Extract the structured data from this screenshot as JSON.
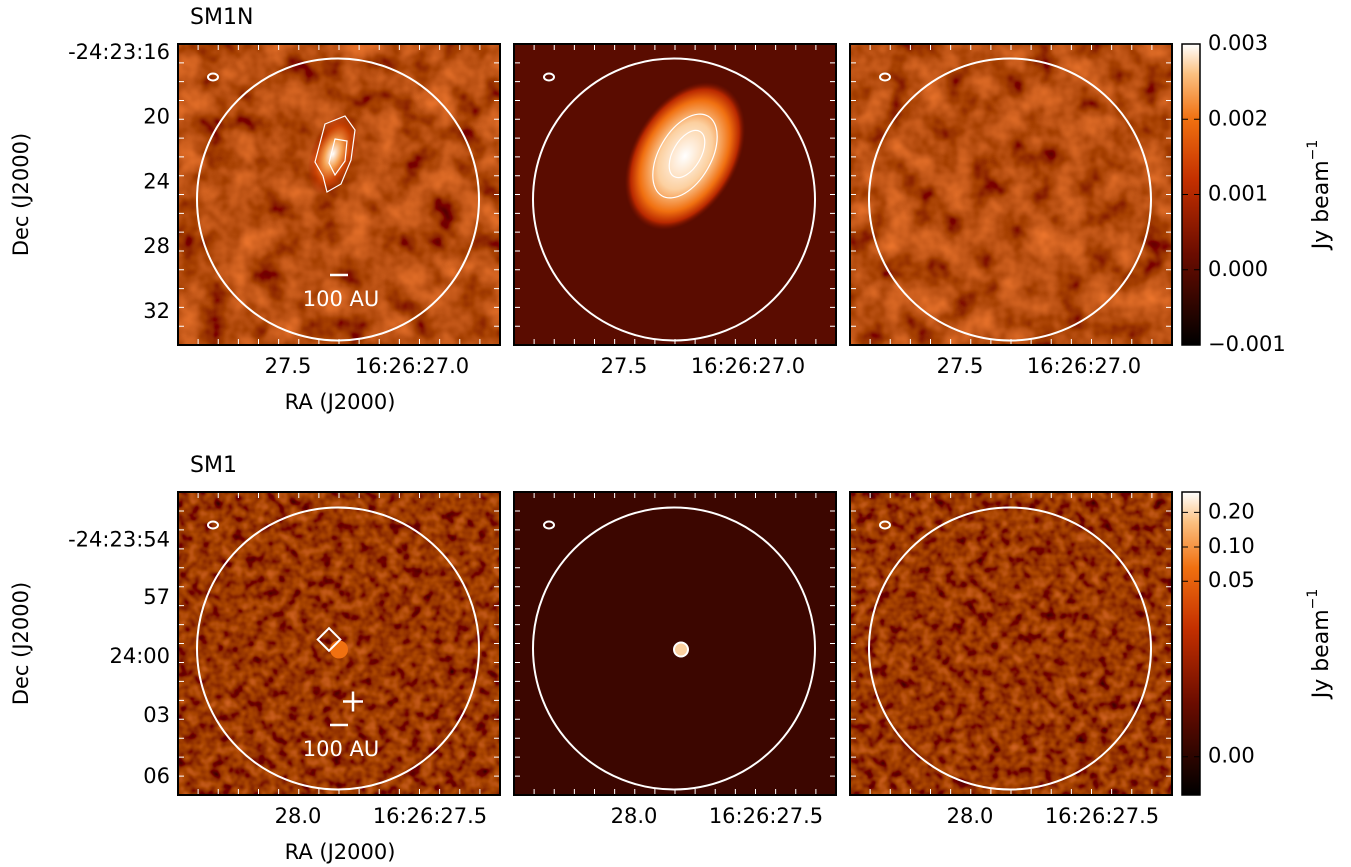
{
  "chart_data": [
    {
      "type": "image",
      "title": "SM1N",
      "xlabel": "RA (J2000)",
      "ylabel": "Dec (J2000)",
      "x_tick_labels": [
        "27.5",
        "16:26:27.0"
      ],
      "y_tick_labels": [
        "-24:23:16",
        "20",
        "24",
        "28",
        "32"
      ],
      "scale_bar_label": "100 AU",
      "colorbar": {
        "label": "Jy beam",
        "label_exponent": "−1",
        "scale": "linear",
        "lim": [
          -0.001,
          0.003
        ],
        "ticks": [
          0.003,
          0.002,
          0.001,
          {
            "value": 0,
            "label": "0.000"
          },
          {
            "value": -0.001,
            "label": "−0.001"
          }
        ]
      }
    },
    {
      "type": "image",
      "title": "SM1",
      "xlabel": "RA (J2000)",
      "ylabel": "Dec (J2000)",
      "x_tick_labels": [
        "28.0",
        "16:26:27.5"
      ],
      "y_tick_labels": [
        "-24:23:54",
        "57",
        "24:00",
        "03",
        "06"
      ],
      "scale_bar_label": "100 AU",
      "colorbar": {
        "label": "Jy beam",
        "label_exponent": "−1",
        "scale": "log",
        "lim": [
          -0.00085,
          0.3
        ],
        "ticks": [
          {
            "value": 0.2,
            "label": "0.20"
          },
          {
            "value": 0.1,
            "label": "0.10"
          },
          0.05,
          {
            "value": 0,
            "label": "0.00"
          }
        ]
      }
    }
  ]
}
